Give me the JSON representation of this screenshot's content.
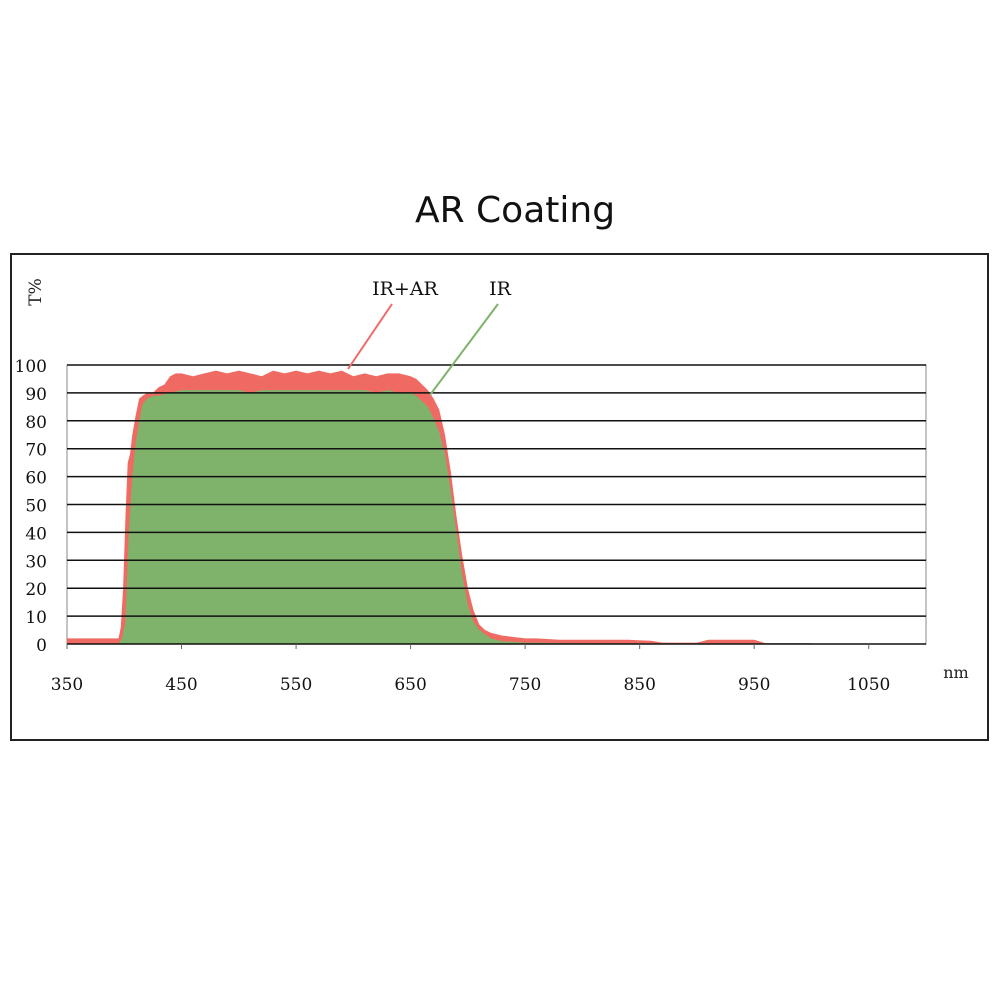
{
  "chart_data": {
    "type": "area",
    "title": "AR Coating",
    "xlabel": "nm",
    "ylabel": "T%",
    "xlim": [
      350,
      1100
    ],
    "ylim": [
      0,
      100
    ],
    "x_ticks": [
      350,
      450,
      550,
      650,
      750,
      850,
      950,
      1050
    ],
    "y_ticks": [
      0,
      10,
      20,
      30,
      40,
      50,
      60,
      70,
      80,
      90,
      100
    ],
    "grid": "horizontal",
    "legend": "top-center, leader-line labels",
    "series": [
      {
        "name": "IR+AR",
        "color": "#f06a64",
        "x": [
          350,
          395,
          397,
          399,
          401,
          403,
          405,
          407,
          410,
          413,
          416,
          420,
          425,
          430,
          435,
          440,
          445,
          450,
          460,
          470,
          480,
          490,
          500,
          510,
          520,
          530,
          540,
          550,
          560,
          570,
          580,
          590,
          600,
          610,
          620,
          630,
          640,
          650,
          655,
          660,
          665,
          670,
          675,
          680,
          685,
          690,
          695,
          700,
          705,
          710,
          715,
          720,
          730,
          740,
          750,
          760,
          780,
          800,
          820,
          840,
          860,
          870,
          900,
          910,
          920,
          950,
          960,
          1000
        ],
        "y": [
          2,
          2,
          6,
          20,
          45,
          65,
          68,
          75,
          82,
          88,
          89,
          90,
          90,
          92,
          93,
          96,
          97,
          97,
          96,
          97,
          98,
          97,
          98,
          97,
          96,
          98,
          97,
          98,
          97,
          98,
          97,
          98,
          96,
          97,
          96,
          97,
          97,
          96,
          95,
          93,
          91,
          88,
          84,
          75,
          62,
          46,
          32,
          20,
          12,
          7,
          5,
          4,
          3,
          2.5,
          2,
          2,
          1.5,
          1.5,
          1.5,
          1.5,
          1.2,
          0.5,
          0.5,
          1.5,
          1.5,
          1.5,
          0.3,
          0.3
        ]
      },
      {
        "name": "IR",
        "color": "#7fb26b",
        "x": [
          350,
          395,
          398,
          401,
          404,
          407,
          410,
          413,
          416,
          420,
          425,
          430,
          440,
          450,
          460,
          470,
          480,
          490,
          500,
          510,
          520,
          530,
          540,
          550,
          560,
          570,
          580,
          590,
          600,
          610,
          620,
          630,
          640,
          650,
          655,
          660,
          665,
          670,
          675,
          680,
          685,
          690,
          695,
          700,
          705,
          710,
          720,
          730,
          750,
          800,
          850,
          900,
          1000
        ],
        "y": [
          0,
          0,
          2,
          8,
          40,
          60,
          72,
          80,
          86,
          88,
          89,
          89,
          90,
          91,
          91,
          91,
          91,
          91,
          91,
          90,
          91,
          91,
          91,
          91,
          91,
          91,
          91,
          91,
          91,
          91,
          90,
          91,
          90,
          90,
          89,
          87,
          85,
          81,
          76,
          68,
          55,
          40,
          25,
          14,
          8,
          5,
          2,
          1,
          0.5,
          0.3,
          0.2,
          0.2,
          0.2
        ]
      }
    ]
  }
}
